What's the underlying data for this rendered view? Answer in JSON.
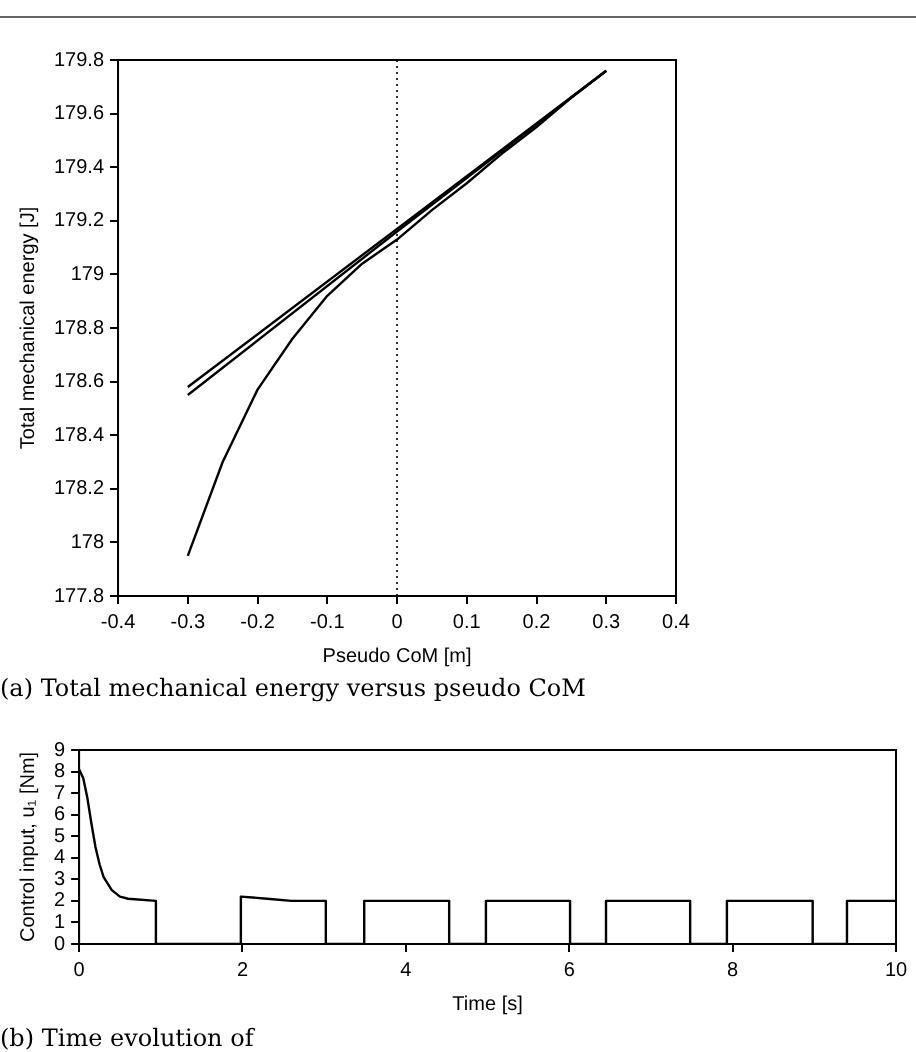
{
  "chart_data": [
    {
      "type": "line",
      "xlabel": "Pseudo CoM [m]",
      "ylabel": "Total mechanical energy [J]",
      "xlim": [
        -0.4,
        0.4
      ],
      "xticks": [
        -0.4,
        -0.3,
        -0.2,
        -0.1,
        0,
        0.1,
        0.2,
        0.3,
        0.4
      ],
      "ylim": [
        177.8,
        179.8
      ],
      "yticks": [
        177.8,
        178,
        178.2,
        178.4,
        178.6,
        178.8,
        179,
        179.2,
        179.4,
        179.6,
        179.8
      ],
      "grid": false,
      "legend": false,
      "marker": "none",
      "line_style": "solid",
      "series": [
        {
          "color": "#000000",
          "x": [
            -0.3,
            0,
            0.3
          ],
          "values": [
            178.58,
            179.17,
            179.76
          ]
        },
        {
          "color": "#000000",
          "x": [
            -0.3,
            0,
            0.3
          ],
          "values": [
            178.55,
            179.16,
            179.76
          ]
        },
        {
          "color": "#000000",
          "x": [
            -0.3,
            -0.25,
            -0.2,
            -0.15,
            -0.1,
            -0.05,
            0,
            0.05,
            0.1,
            0.15,
            0.2,
            0.25,
            0.3
          ],
          "values": [
            177.95,
            178.3,
            178.57,
            178.76,
            178.92,
            179.04,
            179.13,
            179.24,
            179.34,
            179.45,
            179.55,
            179.66,
            179.76
          ]
        }
      ],
      "ref_lines": [
        {
          "axis": "x",
          "value": 0,
          "color": "#000000",
          "line_style": "dotted"
        }
      ],
      "annotations": [
        "(a) Total mechanical energy versus pseudo CoM"
      ]
    },
    {
      "type": "line",
      "xlabel": "Time [s]",
      "ylabel": "Control input, u₁ [Nm]",
      "xlim": [
        0,
        10
      ],
      "xticks": [
        0,
        2,
        4,
        6,
        8,
        10
      ],
      "ylim": [
        0,
        9
      ],
      "yticks": [
        0,
        1,
        2,
        3,
        4,
        5,
        6,
        7,
        8,
        9
      ],
      "grid": false,
      "legend": false,
      "marker": "none",
      "line_style": "solid",
      "series": [
        {
          "color": "#000000",
          "x": [
            0,
            0.05,
            0.1,
            0.15,
            0.2,
            0.25,
            0.3,
            0.4,
            0.5,
            0.6,
            0.94,
            0.94,
            1.98,
            1.98,
            2.3,
            2.6,
            3.02,
            3.02,
            3.49,
            3.49,
            4.53,
            4.53,
            4.98,
            4.98,
            6.01,
            6.01,
            6.45,
            6.45,
            7.48,
            7.48,
            7.93,
            7.93,
            8.98,
            8.98,
            9.4,
            9.4,
            10
          ],
          "values": [
            8.1,
            7.7,
            6.8,
            5.6,
            4.5,
            3.7,
            3.1,
            2.5,
            2.2,
            2.1,
            2,
            0,
            0,
            2.2,
            2.1,
            2,
            2,
            0,
            0,
            2,
            2,
            0,
            0,
            2,
            2,
            0,
            0,
            2,
            2,
            0,
            0,
            2,
            2,
            0,
            0,
            2,
            2
          ]
        }
      ],
      "annotations": [
        "(b) Time evolution of"
      ]
    }
  ]
}
